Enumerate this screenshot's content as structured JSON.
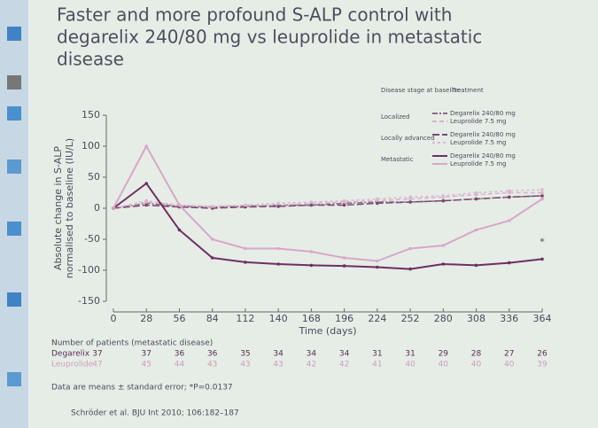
{
  "chart_data": {
    "type": "line",
    "title": [
      "Faster and more profound S-ALP control with",
      "degarelix 240/80 mg vs leuprolide in metastatic",
      "disease"
    ],
    "y_label": [
      "Absolute change in S-ALP",
      "normalised to baseline (IU/L)"
    ],
    "x_label": "Time (days)",
    "x": [
      0,
      28,
      56,
      84,
      112,
      140,
      168,
      196,
      224,
      252,
      280,
      308,
      336,
      364
    ],
    "xlim": [
      0,
      364
    ],
    "xticks": [
      0,
      28,
      56,
      84,
      112,
      140,
      168,
      196,
      224,
      252,
      280,
      308,
      336,
      364
    ],
    "ylim": [
      -150,
      150
    ],
    "yticks": [
      -150,
      -100,
      -50,
      0,
      50,
      100,
      150
    ],
    "legend_headers": [
      "Disease stage at baseline",
      "Treatment"
    ],
    "groups": [
      {
        "stage": "Localized",
        "series": [
          {
            "name": "Degarelix 240/80 mg",
            "color": "#8a6a84",
            "dash": "6 2 2 2",
            "values": [
              0,
              8,
              3,
              2,
              3,
              5,
              5,
              8,
              10,
              10,
              12,
              15,
              18,
              20
            ]
          },
          {
            "name": "Leuprolide 7.5 mg",
            "color": "#d8b3cd",
            "dash": "5 3",
            "values": [
              0,
              10,
              5,
              3,
              5,
              5,
              8,
              10,
              12,
              15,
              18,
              22,
              25,
              25
            ]
          }
        ]
      },
      {
        "stage": "Locally advanced",
        "series": [
          {
            "name": "Degarelix 240/80 mg",
            "color": "#7a4a70",
            "dash": "8 3",
            "values": [
              0,
              5,
              2,
              0,
              2,
              3,
              5,
              5,
              8,
              10,
              12,
              15,
              18,
              20
            ]
          },
          {
            "name": "Leuprolide 7.5 mg",
            "color": "#dcb6d0",
            "dash": "3 3",
            "values": [
              0,
              12,
              5,
              3,
              5,
              8,
              10,
              12,
              15,
              18,
              20,
              25,
              28,
              30
            ]
          }
        ]
      },
      {
        "stage": "Metastatic",
        "series": [
          {
            "name": "Degarelix 240/80 mg",
            "color": "#6e2f62",
            "dash": "none",
            "values": [
              0,
              40,
              -35,
              -80,
              -87,
              -90,
              -92,
              -93,
              -95,
              -98,
              -90,
              -92,
              -88,
              -82
            ]
          },
          {
            "name": "Leuprolide 7.5 mg",
            "color": "#d9a7c7",
            "dash": "none",
            "values": [
              0,
              100,
              5,
              -50,
              -65,
              -65,
              -70,
              -80,
              -85,
              -65,
              -60,
              -35,
              -20,
              15
            ]
          }
        ]
      }
    ],
    "annotation": {
      "text": "*",
      "x": 364,
      "y": -55
    },
    "patients": {
      "title": "Number of patients (metastatic disease)",
      "rows": [
        {
          "label": "Degarelix",
          "values": [
            37,
            37,
            36,
            36,
            35,
            34,
            34,
            34,
            31,
            31,
            29,
            28,
            27,
            26
          ]
        },
        {
          "label": "Leuprolide",
          "values": [
            47,
            45,
            44,
            43,
            43,
            43,
            42,
            42,
            41,
            40,
            40,
            40,
            40,
            39
          ]
        }
      ]
    },
    "footnote": "Data are means ± standard error; *P=0.0137",
    "citation": "Schröder et al. BJU Int 2010; 106:182–187"
  }
}
